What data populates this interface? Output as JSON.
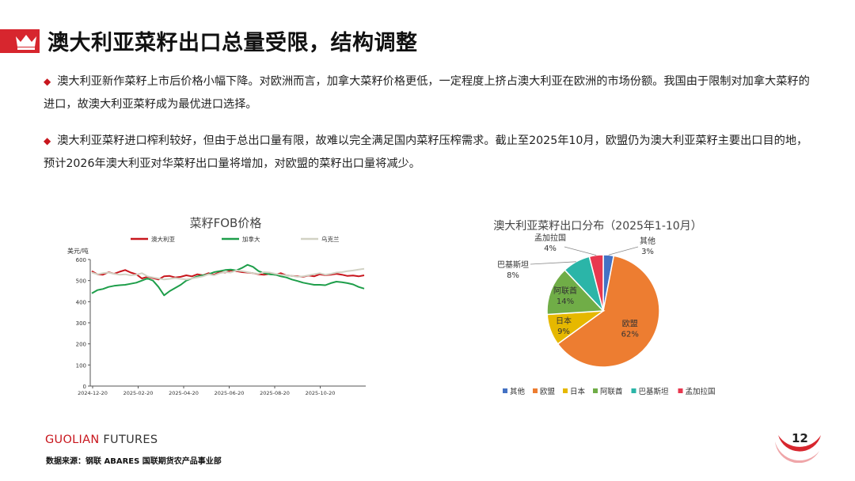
{
  "title": "澳大利亚菜籽出口总量受限，结构调整",
  "bullets": [
    "澳大利亚新作菜籽上市后价格小幅下降。对欧洲而言，加拿大菜籽价格更低，一定程度上挤占澳大利亚在欧洲的市场份额。我国由于限制对加拿大菜籽的进口，故澳大利亚菜籽成为最优进口选择。",
    "澳大利亚菜籽进口榨利较好，但由于总出口量有限，故难以完全满足国内菜籽压榨需求。截止至2025年10月，欧盟仍为澳大利亚菜籽主要出口目的地，预计2026年澳大利亚对华菜籽出口量将增加，对欧盟的菜籽出口量将减少。"
  ],
  "footer": {
    "brand_a": "GUOLIAN",
    "brand_b": " FUTURES",
    "source": "数据来源：钢联  ABARES  国联期货农产品事业部",
    "page": "12"
  },
  "colors": {
    "accent": "#d7262e"
  },
  "chart_data": [
    {
      "type": "line",
      "title": "菜籽FOB价格",
      "ylabel": "美元/吨",
      "ylim": [
        0,
        600
      ],
      "yticks": [
        "0",
        "100",
        "200",
        "300",
        "400",
        "500",
        "600"
      ],
      "xticks": [
        "2024-12-20",
        "2025-02-20",
        "2025-04-20",
        "2025-06-20",
        "2025-08-20",
        "2025-10-20"
      ],
      "grid": false,
      "legend_position": "top",
      "series": [
        {
          "name": "澳大利亚",
          "color": "#c8161d",
          "values": [
            545,
            530,
            528,
            540,
            532,
            542,
            550,
            538,
            530,
            510,
            518,
            512,
            505,
            520,
            522,
            515,
            518,
            525,
            520,
            530,
            525,
            535,
            528,
            540,
            538,
            548,
            545,
            540,
            538,
            535,
            530,
            528,
            532,
            528,
            535,
            525,
            522,
            520,
            518,
            524,
            520,
            530,
            526,
            528,
            532,
            528,
            522,
            524,
            520,
            525
          ]
        },
        {
          "name": "加拿大",
          "color": "#1e9e4a",
          "values": [
            440,
            455,
            460,
            470,
            475,
            478,
            480,
            485,
            490,
            500,
            510,
            500,
            470,
            430,
            450,
            465,
            480,
            500,
            510,
            520,
            525,
            530,
            540,
            545,
            550,
            552,
            548,
            560,
            575,
            565,
            545,
            535,
            530,
            528,
            520,
            515,
            505,
            498,
            490,
            485,
            480,
            480,
            478,
            488,
            495,
            492,
            488,
            482,
            470,
            462
          ]
        },
        {
          "name": "乌克兰",
          "color": "#d2d2c4",
          "values": [
            538,
            530,
            535,
            538,
            532,
            528,
            530,
            525,
            528,
            535,
            520,
            515,
            510,
            505,
            508,
            512,
            508,
            505,
            510,
            515,
            520,
            530,
            525,
            535,
            540,
            538,
            548,
            545,
            540,
            535,
            532,
            540,
            538,
            532,
            528,
            525,
            522,
            518,
            520,
            525,
            530,
            535,
            528,
            532,
            538,
            540,
            545,
            548,
            552,
            556
          ]
        }
      ]
    },
    {
      "type": "pie",
      "title": "澳大利亚菜籽出口分布（2025年1-10月）",
      "categories": [
        "其他",
        "欧盟",
        "日本",
        "阿联酋",
        "巴基斯坦",
        "孟加拉国"
      ],
      "values": [
        3,
        62,
        9,
        14,
        8,
        4
      ],
      "colors": [
        "#4472c4",
        "#ed7d31",
        "#e6b800",
        "#70ad47",
        "#2bb5a8",
        "#e8384f"
      ],
      "value_labels": [
        "3%",
        "62%",
        "9%",
        "14%",
        "8%",
        "4%"
      ],
      "legend_position": "bottom"
    }
  ]
}
